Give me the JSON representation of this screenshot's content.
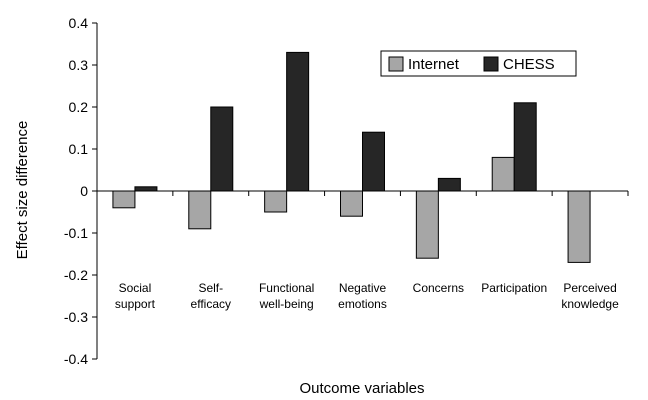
{
  "chart_data": {
    "type": "bar",
    "title": "",
    "xlabel": "Outcome variables",
    "ylabel": "Effect size difference",
    "ylim": [
      -0.4,
      0.4
    ],
    "yticks": [
      "0.4",
      "0.3",
      "0.2",
      "0.1",
      "0",
      "-0.1",
      "-0.2",
      "-0.3",
      "-0.4"
    ],
    "ytick_values": [
      0.4,
      0.3,
      0.2,
      0.1,
      0,
      -0.1,
      -0.2,
      -0.3,
      -0.4
    ],
    "categories": [
      [
        "Social",
        "support"
      ],
      [
        "Self-",
        "efficacy"
      ],
      [
        "Functional",
        "well-being"
      ],
      [
        "Negative",
        "emotions"
      ],
      [
        "Concerns"
      ],
      [
        "Participation"
      ],
      [
        "Perceived",
        "knowledge"
      ]
    ],
    "series": [
      {
        "name": "Internet",
        "color": "#a6a6a6",
        "values": [
          -0.04,
          -0.09,
          -0.05,
          -0.06,
          -0.16,
          0.08,
          -0.17
        ]
      },
      {
        "name": "CHESS",
        "color": "#262626",
        "values": [
          0.01,
          0.2,
          0.33,
          0.14,
          0.03,
          0.21,
          null
        ]
      }
    ],
    "grid": false,
    "legend": "top-right"
  }
}
